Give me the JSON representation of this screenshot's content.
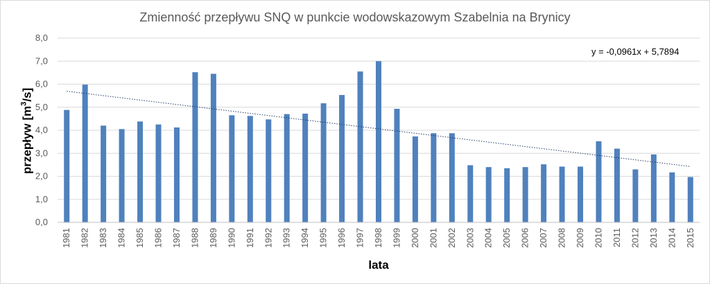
{
  "chart_data": {
    "type": "bar",
    "title": "Zmienność przepływu SNQ w punkcie wodowskazowym  Szabelnia na Brynicy",
    "xlabel": "lata",
    "ylabel_prefix": "przepływ [m",
    "ylabel_sup": "3",
    "ylabel_suffix": "/s]",
    "ylim": [
      0,
      8
    ],
    "yticks": [
      "0,0",
      "1,0",
      "2,0",
      "3,0",
      "4,0",
      "5,0",
      "6,0",
      "7,0",
      "8,0"
    ],
    "grid": true,
    "legend": "none",
    "bar_color": "#4f81bd",
    "trendline": {
      "color": "#1f3864",
      "style": "dotted",
      "slope": -0.0961,
      "intercept": 5.7894,
      "equation": "y = -0,0961x + 5,7894"
    },
    "categories": [
      "1981",
      "1982",
      "1983",
      "1984",
      "1985",
      "1986",
      "1987",
      "1988",
      "1989",
      "1990",
      "1991",
      "1992",
      "1993",
      "1994",
      "1995",
      "1996",
      "1997",
      "1998",
      "1999",
      "2000",
      "2001",
      "2002",
      "2003",
      "2004",
      "2005",
      "2006",
      "2007",
      "2008",
      "2009",
      "2010",
      "2011",
      "2012",
      "2013",
      "2014",
      "2015"
    ],
    "values": [
      4.88,
      5.98,
      4.2,
      4.05,
      4.38,
      4.25,
      4.12,
      6.52,
      6.45,
      4.65,
      4.62,
      4.47,
      4.7,
      4.72,
      5.17,
      5.53,
      6.55,
      7.0,
      4.93,
      3.73,
      3.87,
      3.87,
      2.48,
      2.4,
      2.35,
      2.4,
      2.52,
      2.42,
      2.42,
      3.52,
      3.2,
      2.3,
      2.95,
      2.17,
      1.97
    ]
  }
}
